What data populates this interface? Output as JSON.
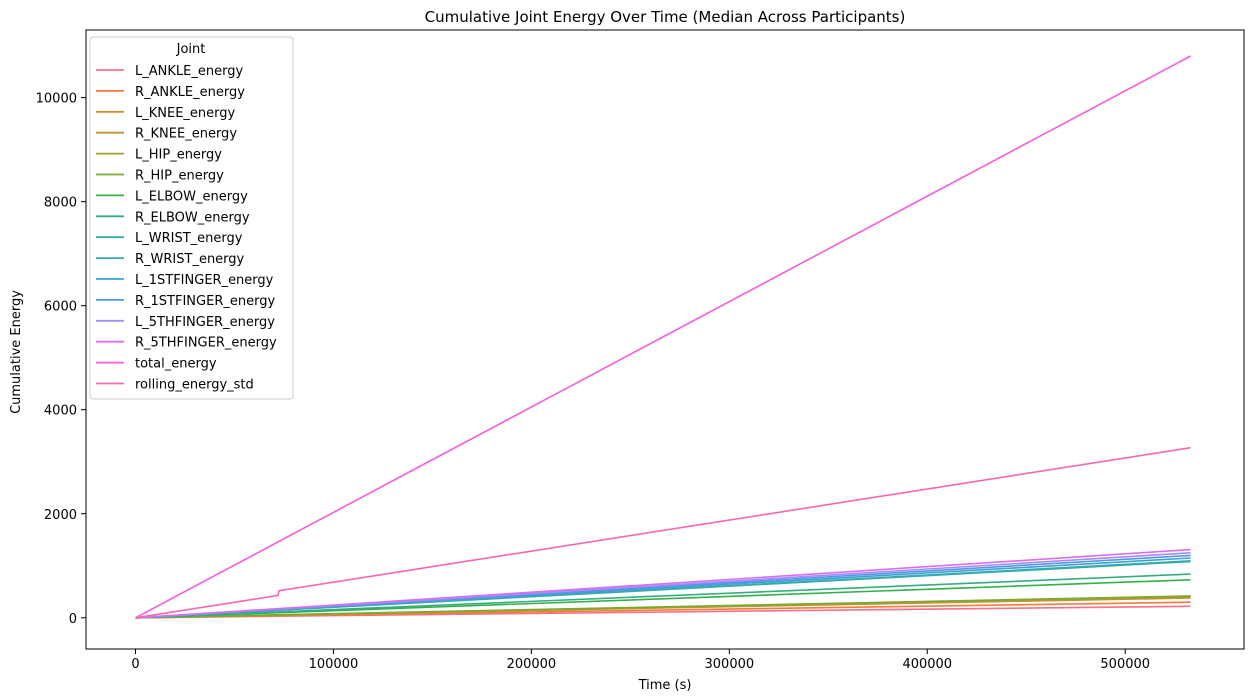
{
  "chart_data": {
    "type": "line",
    "title": "Cumulative Joint Energy Over Time (Median Across Participants)",
    "xlabel": "Time (s)",
    "ylabel": "Cumulative Energy",
    "xlim": [
      -25000,
      560000
    ],
    "ylim": [
      -600,
      11300
    ],
    "x_ticks": [
      0,
      100000,
      200000,
      300000,
      400000,
      500000
    ],
    "y_ticks": [
      0,
      2000,
      4000,
      6000,
      8000,
      10000
    ],
    "grid": false,
    "legend": {
      "title": "Joint",
      "placement": "top-left"
    },
    "series": [
      {
        "name": "L_ANKLE_energy",
        "color": "#f77189",
        "x": [
          0,
          533000
        ],
        "y": [
          0,
          220
        ]
      },
      {
        "name": "R_ANKLE_energy",
        "color": "#f27d3a",
        "x": [
          0,
          533000
        ],
        "y": [
          0,
          300
        ]
      },
      {
        "name": "L_KNEE_energy",
        "color": "#d58c32",
        "x": [
          0,
          533000
        ],
        "y": [
          0,
          380
        ]
      },
      {
        "name": "R_KNEE_energy",
        "color": "#ba9832",
        "x": [
          0,
          533000
        ],
        "y": [
          0,
          395
        ]
      },
      {
        "name": "L_HIP_energy",
        "color": "#a39e31",
        "x": [
          0,
          533000
        ],
        "y": [
          0,
          405
        ]
      },
      {
        "name": "R_HIP_energy",
        "color": "#77ab31",
        "x": [
          0,
          533000
        ],
        "y": [
          0,
          420
        ]
      },
      {
        "name": "L_ELBOW_energy",
        "color": "#33b04c",
        "x": [
          0,
          533000
        ],
        "y": [
          0,
          730
        ]
      },
      {
        "name": "R_ELBOW_energy",
        "color": "#35ad7e",
        "x": [
          0,
          533000
        ],
        "y": [
          0,
          840
        ]
      },
      {
        "name": "L_WRIST_energy",
        "color": "#36ac9d",
        "x": [
          0,
          533000
        ],
        "y": [
          0,
          1080
        ]
      },
      {
        "name": "R_WRIST_energy",
        "color": "#38a9b4",
        "x": [
          0,
          533000
        ],
        "y": [
          0,
          1095
        ]
      },
      {
        "name": "L_1STFINGER_energy",
        "color": "#3ba3cd",
        "x": [
          0,
          533000
        ],
        "y": [
          0,
          1150
        ]
      },
      {
        "name": "R_1STFINGER_energy",
        "color": "#5496ee",
        "x": [
          0,
          533000
        ],
        "y": [
          0,
          1200
        ]
      },
      {
        "name": "L_5THFINGER_energy",
        "color": "#a48cf3",
        "x": [
          0,
          533000
        ],
        "y": [
          0,
          1250
        ]
      },
      {
        "name": "R_5THFINGER_energy",
        "color": "#db6df4",
        "x": [
          0,
          533000
        ],
        "y": [
          0,
          1310
        ]
      },
      {
        "name": "total_energy",
        "color": "#f45fdc",
        "x": [
          0,
          533000
        ],
        "y": [
          0,
          10800
        ]
      },
      {
        "name": "rolling_energy_std",
        "color": "#f667b3",
        "x": [
          0,
          72000,
          72500,
          533000
        ],
        "y": [
          0,
          430,
          520,
          3270
        ]
      }
    ]
  }
}
